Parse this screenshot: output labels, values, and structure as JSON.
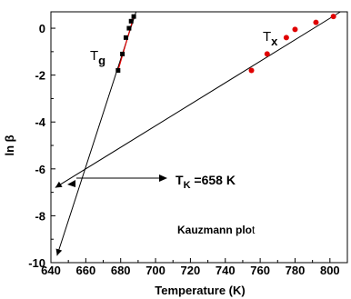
{
  "chart_data": {
    "type": "scatter",
    "xlabel": "Temperature (K)",
    "ylabel": "ln β",
    "xlim": [
      640,
      810
    ],
    "ylim": [
      -10,
      0.7
    ],
    "x_ticks": [
      640,
      660,
      680,
      700,
      720,
      740,
      760,
      780,
      800
    ],
    "y_ticks": [
      0,
      -2,
      -4,
      -6,
      -8,
      -10
    ],
    "grid": false,
    "series": [
      {
        "name": "Tg",
        "marker": "square",
        "color": "#000000",
        "fit_color": "#e00000",
        "points": [
          {
            "x": 678.5,
            "y": -1.8
          },
          {
            "x": 681.0,
            "y": -1.1
          },
          {
            "x": 683.0,
            "y": -0.4
          },
          {
            "x": 684.8,
            "y": 0.0
          },
          {
            "x": 686.0,
            "y": 0.3
          },
          {
            "x": 687.5,
            "y": 0.5
          }
        ]
      },
      {
        "name": "Tx",
        "marker": "circle",
        "color": "#e00000",
        "fit_color": "#000000",
        "points": [
          {
            "x": 755,
            "y": -1.8
          },
          {
            "x": 764,
            "y": -1.1
          },
          {
            "x": 775,
            "y": -0.4
          },
          {
            "x": 780,
            "y": -0.05
          },
          {
            "x": 792,
            "y": 0.25
          },
          {
            "x": 802,
            "y": 0.5
          }
        ]
      }
    ],
    "extrapolation_lines": [
      {
        "series": "Tg",
        "from": {
          "x": 688.8,
          "y": 0.7
        },
        "to": {
          "x": 643.5,
          "y": -9.7
        }
      },
      {
        "series": "Tx",
        "from": {
          "x": 806,
          "y": 0.7
        },
        "to": {
          "x": 642.5,
          "y": -6.8
        }
      }
    ],
    "annotations": {
      "tg_label": {
        "main": "T",
        "sub": "g"
      },
      "tx_label": {
        "main": "T",
        "sub": "x"
      },
      "tk_label": {
        "main": "T",
        "sub": "K",
        "rest": " =658 K"
      },
      "kauzmann": {
        "main": "Kauzmann plo",
        "tail": "t"
      }
    }
  }
}
